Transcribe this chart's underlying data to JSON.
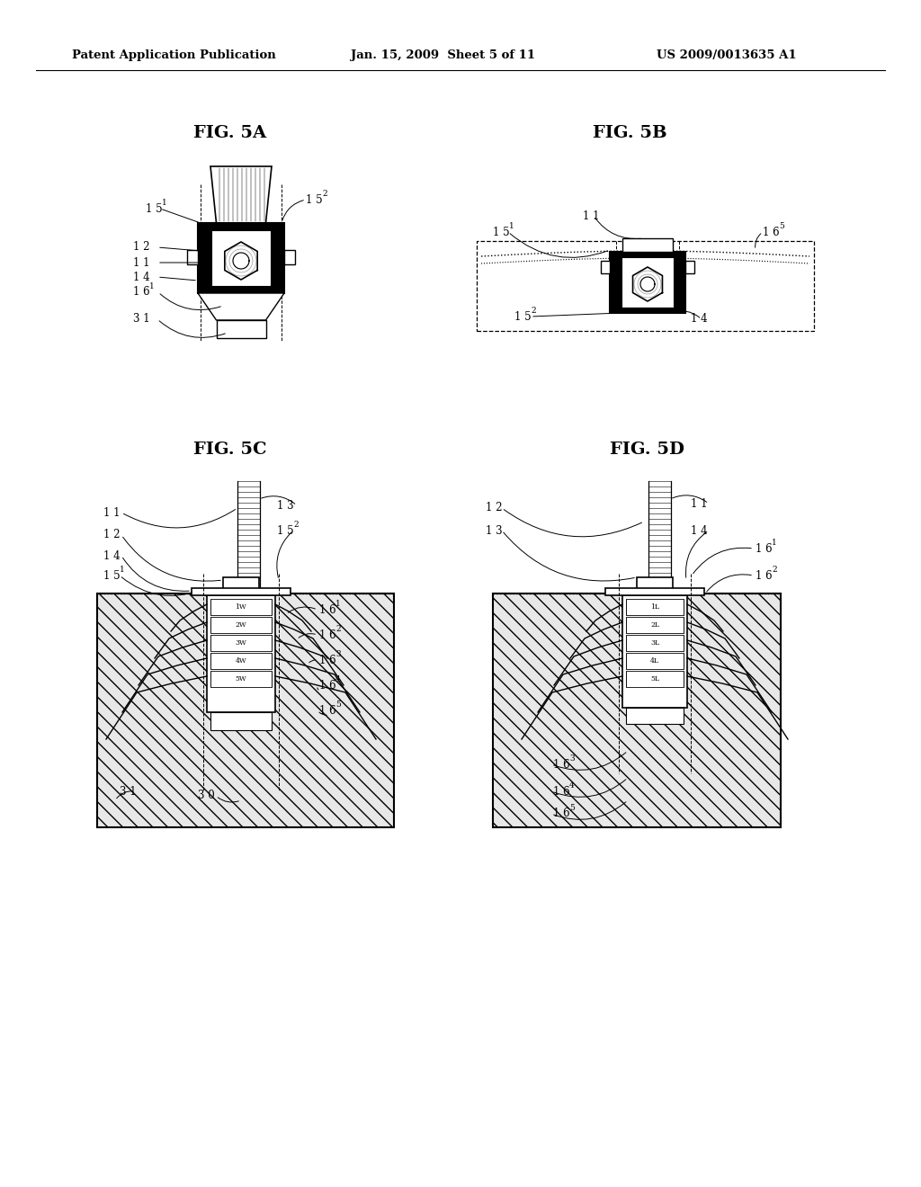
{
  "bg_color": "#ffffff",
  "header_left": "Patent Application Publication",
  "header_mid": "Jan. 15, 2009  Sheet 5 of 11",
  "header_right": "US 2009/0013635 A1",
  "page_width": 10.24,
  "page_height": 13.2,
  "dpi": 100
}
